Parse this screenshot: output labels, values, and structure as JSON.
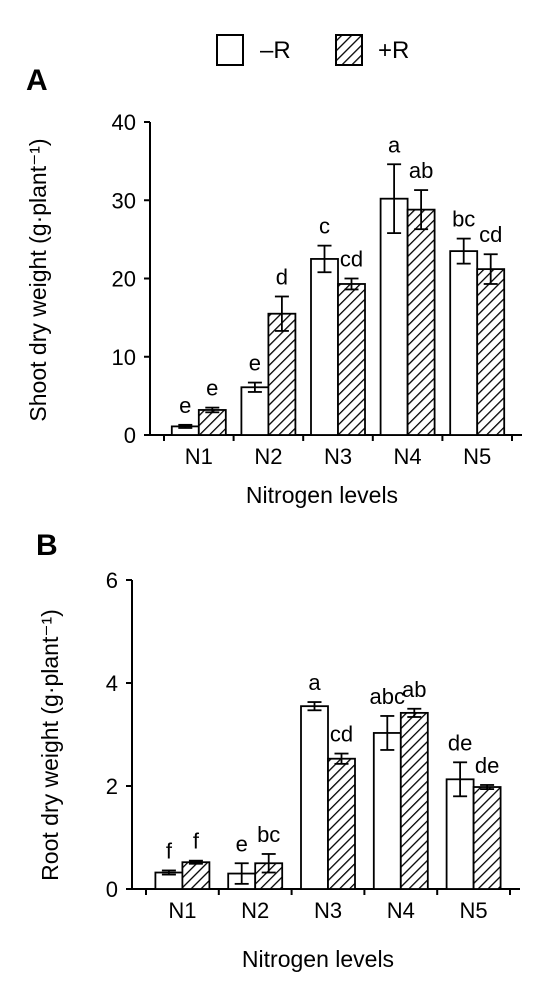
{
  "legend": {
    "items": [
      {
        "label": "–R",
        "fill": "none"
      },
      {
        "label": "+R",
        "fill": "hatched"
      }
    ]
  },
  "colors": {
    "stroke": "#000000",
    "background": "#ffffff"
  },
  "chart_data": [
    {
      "panel": "A",
      "type": "bar",
      "categories": [
        "N1",
        "N2",
        "N3",
        "N4",
        "N5"
      ],
      "xlabel": "Nitrogen levels",
      "ylabel": "Shoot dry weight (g·plant⁻¹)",
      "ylim": [
        0,
        40
      ],
      "yticks": [
        0,
        10,
        20,
        30,
        40
      ],
      "series": [
        {
          "name": "–R",
          "fill": "none",
          "values": [
            1.1,
            6.1,
            22.5,
            30.2,
            23.5
          ],
          "errors": [
            0.2,
            0.6,
            1.7,
            4.4,
            1.6
          ],
          "letters": [
            "e",
            "e",
            "c",
            "a",
            "bc"
          ]
        },
        {
          "name": "+R",
          "fill": "hatched",
          "values": [
            3.2,
            15.5,
            19.3,
            28.8,
            21.2
          ],
          "errors": [
            0.3,
            2.2,
            0.7,
            2.5,
            1.9
          ],
          "letters": [
            "e",
            "d",
            "cd",
            "ab",
            "cd"
          ]
        }
      ]
    },
    {
      "panel": "B",
      "type": "bar",
      "categories": [
        "N1",
        "N2",
        "N3",
        "N4",
        "N5"
      ],
      "xlabel": "Nitrogen levels",
      "ylabel": "Root dry weight (g·plant⁻¹)",
      "ylim": [
        0,
        6
      ],
      "yticks": [
        0,
        2,
        4,
        6
      ],
      "series": [
        {
          "name": "–R",
          "fill": "none",
          "values": [
            0.32,
            0.3,
            3.55,
            3.03,
            2.13
          ],
          "errors": [
            0.04,
            0.2,
            0.08,
            0.33,
            0.33
          ],
          "letters": [
            "f",
            "e",
            "a",
            "abc",
            "de"
          ]
        },
        {
          "name": "+R",
          "fill": "hatched",
          "values": [
            0.52,
            0.5,
            2.53,
            3.42,
            1.98
          ],
          "errors": [
            0.03,
            0.18,
            0.1,
            0.08,
            0.04
          ],
          "letters": [
            "f",
            "bc",
            "cd",
            "ab",
            "de"
          ]
        }
      ]
    }
  ]
}
